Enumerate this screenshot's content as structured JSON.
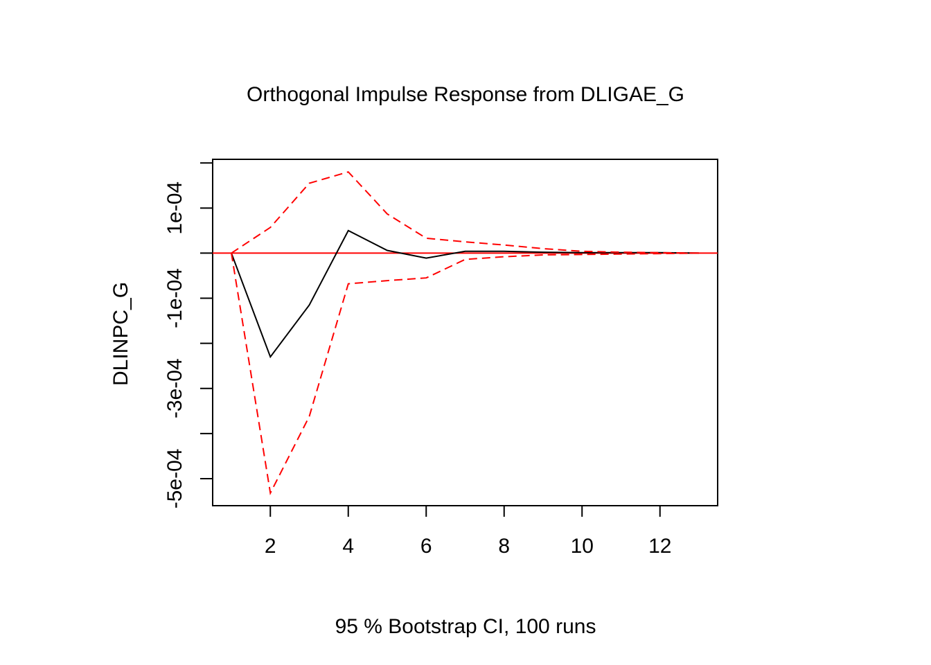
{
  "chart_data": {
    "type": "line",
    "title": "Orthogonal Impulse Response from DLIGAE_G",
    "xlabel": "95 % Bootstrap CI,  100 runs",
    "ylabel": "DLINPC_G",
    "x": [
      1,
      2,
      3,
      4,
      5,
      6,
      7,
      8,
      9,
      10,
      11,
      12,
      13
    ],
    "xlim": [
      0.52,
      13.48
    ],
    "ylim": [
      -0.00056,
      0.000208
    ],
    "xticks": [
      2,
      4,
      6,
      8,
      10,
      12
    ],
    "xtick_labels": [
      "2",
      "4",
      "6",
      "8",
      "10",
      "12"
    ],
    "yticks": [
      -0.0005,
      -0.0004,
      -0.0003,
      -0.0002,
      -0.0001,
      0,
      0.0001,
      0.0002
    ],
    "ytick_labels": [
      {
        "value": -0.0005,
        "label": "-5e-04"
      },
      {
        "value": -0.0003,
        "label": "-3e-04"
      },
      {
        "value": -0.0001,
        "label": "-1e-04"
      },
      {
        "value": 0.0001,
        "label": "1e-04"
      }
    ],
    "reference_line": {
      "y": 0,
      "color": "#ff0000"
    },
    "series": [
      {
        "role": "response",
        "color": "#000000",
        "style": "solid",
        "values": [
          0,
          -0.00023,
          -0.000115,
          5e-05,
          6e-06,
          -1.1e-05,
          4e-06,
          4e-06,
          2e-06,
          1e-06,
          1e-06,
          1e-06,
          0
        ]
      },
      {
        "role": "upper-ci",
        "color": "#ff0000",
        "style": "dashed",
        "values": [
          0,
          5.7e-05,
          0.000155,
          0.00018,
          8.7e-05,
          3.3e-05,
          2.5e-05,
          1.8e-05,
          1e-05,
          4e-06,
          2e-06,
          1e-06,
          0
        ]
      },
      {
        "role": "lower-ci",
        "color": "#ff0000",
        "style": "dashed",
        "values": [
          0,
          -0.000532,
          -0.000362,
          -6.8e-05,
          -6.1e-05,
          -5.5e-05,
          -1.4e-05,
          -8e-06,
          -4e-06,
          -3e-06,
          -2e-06,
          -1e-06,
          0
        ]
      }
    ],
    "grid": false,
    "legend": "none"
  }
}
